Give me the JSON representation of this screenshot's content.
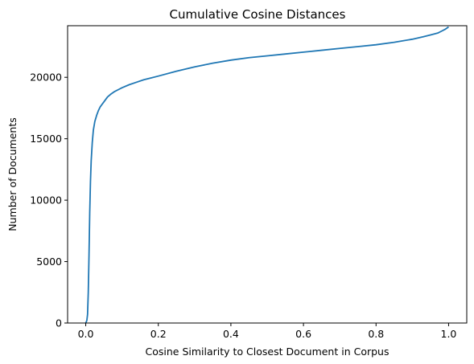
{
  "chart_data": {
    "type": "line",
    "title": "Cumulative Cosine Distances",
    "xlabel": "Cosine Similarity to Closest Document in Corpus",
    "ylabel": "Number of Documents",
    "xlim": [
      -0.05,
      1.05
    ],
    "ylim": [
      0,
      24200
    ],
    "grid": false,
    "line_color": "#1f77b4",
    "x_ticks": [
      {
        "value": 0.0,
        "label": "0.0"
      },
      {
        "value": 0.2,
        "label": "0.2"
      },
      {
        "value": 0.4,
        "label": "0.4"
      },
      {
        "value": 0.6,
        "label": "0.6"
      },
      {
        "value": 0.8,
        "label": "0.8"
      },
      {
        "value": 1.0,
        "label": "1.0"
      }
    ],
    "y_ticks": [
      {
        "value": 0,
        "label": "0"
      },
      {
        "value": 5000,
        "label": "5000"
      },
      {
        "value": 10000,
        "label": "10000"
      },
      {
        "value": 15000,
        "label": "15000"
      },
      {
        "value": 20000,
        "label": "20000"
      }
    ],
    "series": [
      {
        "x": [
          0.0,
          0.003,
          0.005,
          0.007,
          0.009,
          0.011,
          0.013,
          0.015,
          0.018,
          0.021,
          0.025,
          0.03,
          0.035,
          0.04,
          0.05,
          0.06,
          0.07,
          0.08,
          0.09,
          0.1,
          0.12,
          0.14,
          0.16,
          0.18,
          0.2,
          0.25,
          0.3,
          0.35,
          0.4,
          0.45,
          0.5,
          0.55,
          0.6,
          0.65,
          0.7,
          0.75,
          0.8,
          0.85,
          0.9,
          0.93,
          0.95,
          0.97,
          0.98,
          0.99,
          1.0
        ],
        "y": [
          0,
          200,
          700,
          2500,
          5500,
          9000,
          11500,
          13200,
          14700,
          15700,
          16400,
          16900,
          17300,
          17600,
          18000,
          18400,
          18650,
          18850,
          19000,
          19150,
          19400,
          19600,
          19800,
          19950,
          20100,
          20500,
          20850,
          21150,
          21400,
          21600,
          21750,
          21900,
          22050,
          22200,
          22350,
          22500,
          22650,
          22850,
          23100,
          23300,
          23450,
          23600,
          23750,
          23900,
          24100
        ]
      }
    ]
  }
}
